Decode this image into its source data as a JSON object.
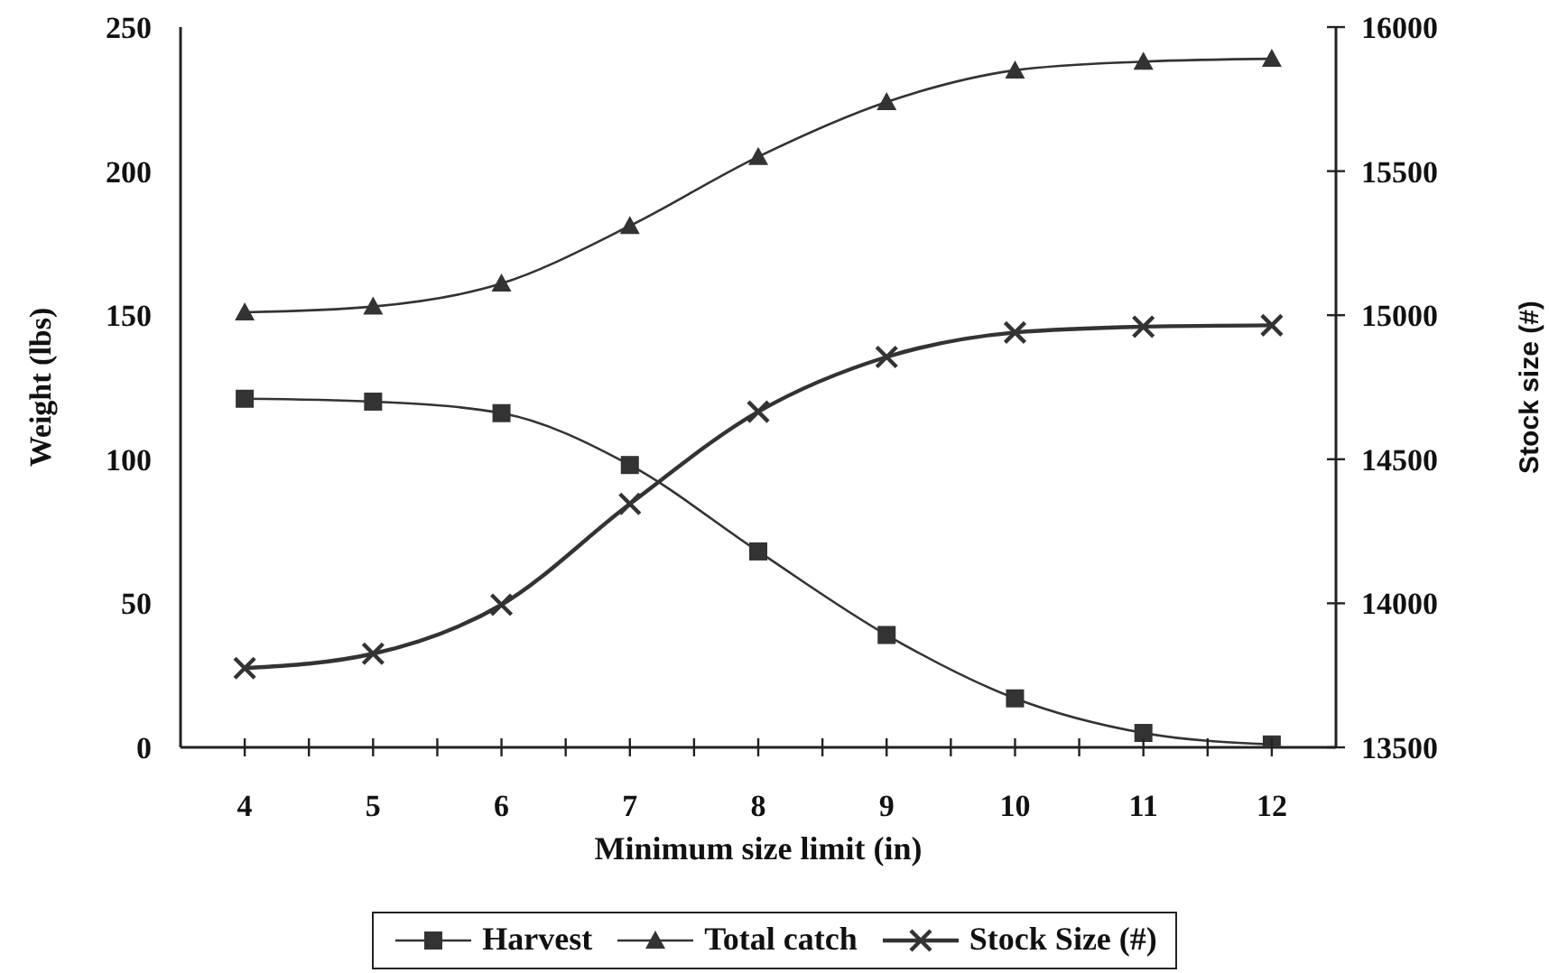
{
  "chart_data": {
    "type": "line",
    "xlabel": "Minimum size limit (in)",
    "ylabel": "Weight (lbs)",
    "y2label": "Stock size (#)",
    "x": [
      4,
      5,
      6,
      7,
      8,
      9,
      10,
      11,
      12
    ],
    "xlim": [
      3.5,
      12.5
    ],
    "xticks": [
      4,
      {
        "value": 4.5,
        "label": null
      },
      5,
      {
        "value": 5.5,
        "label": null
      },
      6,
      {
        "value": 6.5,
        "label": null
      },
      7,
      {
        "value": 7.5,
        "label": null
      },
      8,
      {
        "value": 8.5,
        "label": null
      },
      9,
      {
        "value": 9.5,
        "label": null
      },
      10,
      {
        "value": 10.5,
        "label": null
      },
      11,
      {
        "value": 11.5,
        "label": null
      },
      12
    ],
    "ylim": [
      0,
      250
    ],
    "yticks": [
      0,
      50,
      100,
      150,
      200,
      250
    ],
    "y2lim": [
      13500,
      16000
    ],
    "y2ticks": [
      13500,
      14000,
      14500,
      15000,
      15500,
      16000
    ],
    "legend": "bottom",
    "series": [
      {
        "name": "Harvest",
        "color": "#333333",
        "marker": "square",
        "values": [
          121,
          120,
          116,
          98,
          68,
          39,
          17,
          5,
          1
        ]
      },
      {
        "name": "Total catch",
        "color": "#333333",
        "marker": "triangle",
        "values": [
          151,
          153,
          161,
          181,
          205,
          224,
          235,
          238,
          239
        ]
      },
      {
        "name": "Stock Size (#)",
        "color": "#333333",
        "marker": "cross",
        "axis": "y2",
        "values": [
          13775,
          13825,
          13995,
          14345,
          14665,
          14855,
          14940,
          14960,
          14965
        ]
      }
    ]
  }
}
